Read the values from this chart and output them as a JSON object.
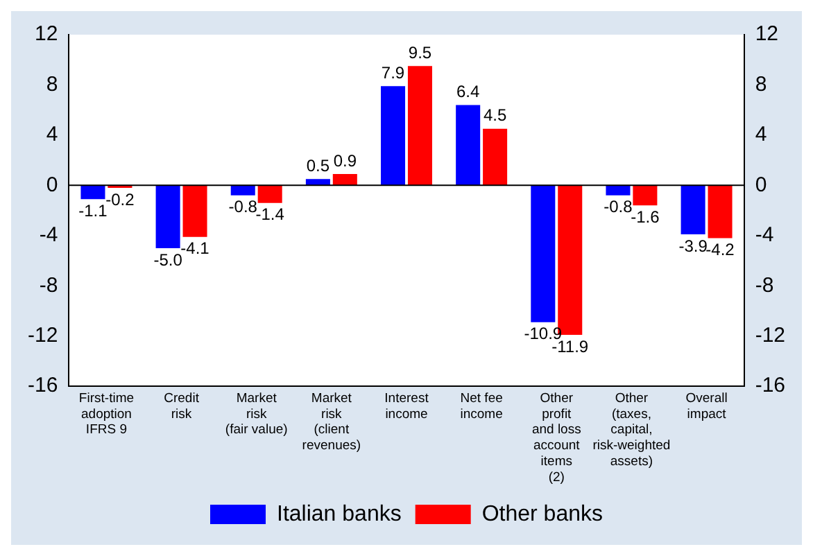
{
  "chart_data": {
    "type": "bar",
    "categories": [
      "First-time\nadoption\nIFRS 9",
      "Credit\nrisk",
      "Market\nrisk\n(fair value)",
      "Market\nrisk\n(client\nrevenues)",
      "Interest\nincome",
      "Net fee\nincome",
      "Other\nprofit\nand loss\naccount\nitems\n(2)",
      "Other\n(taxes,\ncapital,\nrisk-weighted\nassets)",
      "Overall\nimpact"
    ],
    "series": [
      {
        "name": "Italian banks",
        "color": "#0000ff",
        "values": [
          -1.1,
          -5.0,
          -0.8,
          0.5,
          7.9,
          6.4,
          -10.9,
          -0.8,
          -3.9
        ],
        "value_labels": [
          "-1.1",
          "-5.0",
          "-0.8",
          "0.5",
          "7.9",
          "6.4",
          "-10.9",
          "-0.8",
          "-3.9"
        ]
      },
      {
        "name": "Other banks",
        "color": "#ff0000",
        "values": [
          -0.2,
          -4.1,
          -1.4,
          0.9,
          9.5,
          4.5,
          -11.9,
          -1.6,
          -4.2
        ],
        "value_labels": [
          "-0.2",
          "-4.1",
          "-1.4",
          "0.9",
          "9.5",
          "4.5",
          "-11.9",
          "-1.6",
          "-4.2"
        ]
      }
    ],
    "ylim": [
      -16,
      12
    ],
    "yticks": [
      -16,
      -12,
      -8,
      -4,
      0,
      4,
      8,
      12
    ],
    "y2lim": [
      -16,
      12
    ],
    "y2ticks": [
      -16,
      -12,
      -8,
      -4,
      0,
      4,
      8,
      12
    ],
    "ref_lines": [
      {
        "axis": "y",
        "value": 0,
        "color": "#000000"
      }
    ],
    "grid": false,
    "legend": "bottom"
  }
}
